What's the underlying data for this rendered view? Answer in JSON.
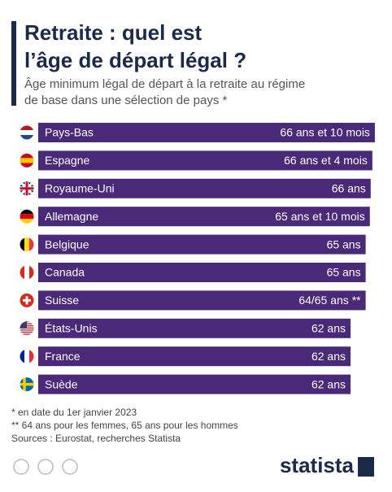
{
  "chart_data": {
    "type": "bar",
    "orientation": "horizontal",
    "title": "Retraite : quel est l’âge de départ légal ?",
    "subtitle": "Âge minimum légal de départ à la retraite au régime de base dans une sélection de pays *",
    "categories": [
      "Pays-Bas",
      "Espagne",
      "Royaume-Uni",
      "Allemagne",
      "Belgique",
      "Canada",
      "Suisse",
      "États-Unis",
      "France",
      "Suède"
    ],
    "values": [
      66.83,
      66.33,
      66,
      65.83,
      65,
      65,
      65,
      62,
      62,
      62
    ],
    "value_labels": [
      "66 ans et 10 mois",
      "66 ans et 4 mois",
      "66 ans",
      "65 ans et 10 mois",
      "65 ans",
      "65 ans",
      "64/65 ans **",
      "62 ans",
      "62 ans",
      "62 ans"
    ],
    "color": "#4a2a78",
    "xlim": [
      0,
      67
    ],
    "footnotes": [
      "*    en date du 1er janvier 2023",
      "** 64 ans pour les femmes, 65 ans pour les hommes",
      "Sources : Eurostat, recherches Statista"
    ],
    "brand": "statista"
  }
}
